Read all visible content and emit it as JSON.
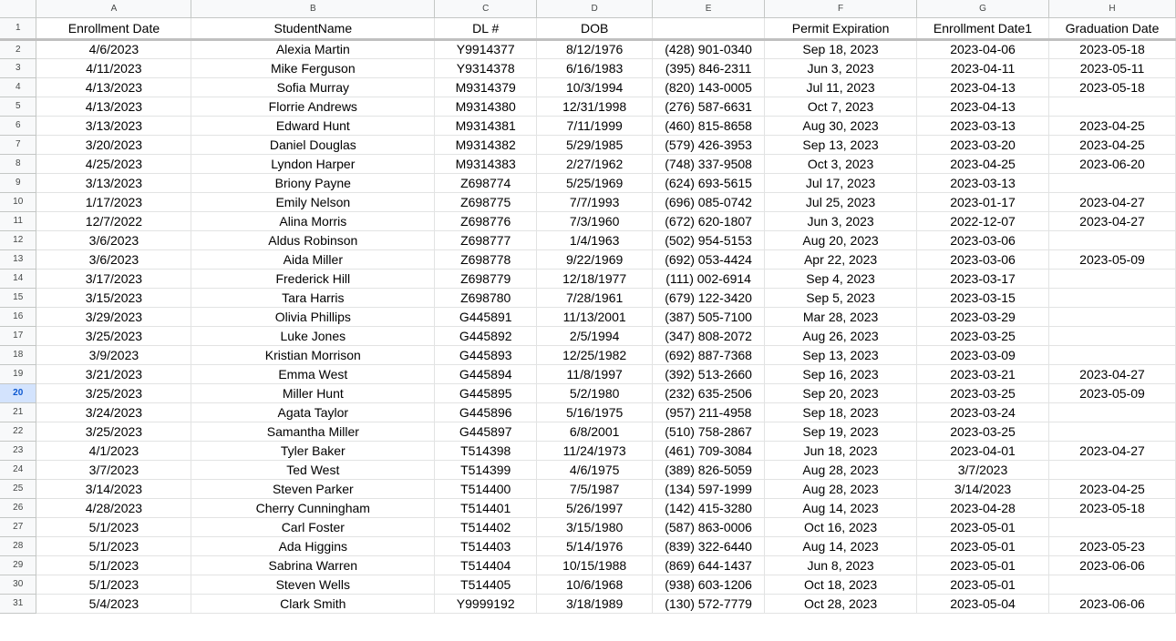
{
  "columns": [
    {
      "letter": "A",
      "header": "Enrollment Date"
    },
    {
      "letter": "B",
      "header": "StudentName"
    },
    {
      "letter": "C",
      "header": "DL #"
    },
    {
      "letter": "D",
      "header": "DOB"
    },
    {
      "letter": "E",
      "header": ""
    },
    {
      "letter": "F",
      "header": "Permit Expiration"
    },
    {
      "letter": "G",
      "header": "Enrollment Date1"
    },
    {
      "letter": "H",
      "header": "Graduation Date"
    }
  ],
  "header_row_number": "1",
  "selected_row_number": "20",
  "rows": [
    {
      "num": "2",
      "cells": [
        "4/6/2023",
        "Alexia Martin",
        "Y9914377",
        "8/12/1976",
        "(428) 901-0340",
        "Sep 18, 2023",
        "2023-04-06",
        "2023-05-18"
      ]
    },
    {
      "num": "3",
      "cells": [
        "4/11/2023",
        "Mike Ferguson",
        "Y9314378",
        "6/16/1983",
        "(395) 846-2311",
        "Jun 3, 2023",
        "2023-04-11",
        "2023-05-11"
      ]
    },
    {
      "num": "4",
      "cells": [
        "4/13/2023",
        "Sofia Murray",
        "M9314379",
        "10/3/1994",
        "(820) 143-0005",
        "Jul 11, 2023",
        "2023-04-13",
        "2023-05-18"
      ]
    },
    {
      "num": "5",
      "cells": [
        "4/13/2023",
        "Florrie Andrews",
        "M9314380",
        "12/31/1998",
        "(276) 587-6631",
        "Oct 7, 2023",
        "2023-04-13",
        ""
      ]
    },
    {
      "num": "6",
      "cells": [
        "3/13/2023",
        "Edward Hunt",
        "M9314381",
        "7/11/1999",
        "(460) 815-8658",
        "Aug 30, 2023",
        "2023-03-13",
        "2023-04-25"
      ]
    },
    {
      "num": "7",
      "cells": [
        "3/20/2023",
        "Daniel Douglas",
        "M9314382",
        "5/29/1985",
        "(579) 426-3953",
        "Sep 13, 2023",
        "2023-03-20",
        "2023-04-25"
      ]
    },
    {
      "num": "8",
      "cells": [
        "4/25/2023",
        "Lyndon Harper",
        "M9314383",
        "2/27/1962",
        "(748) 337-9508",
        "Oct 3, 2023",
        "2023-04-25",
        "2023-06-20"
      ]
    },
    {
      "num": "9",
      "cells": [
        "3/13/2023",
        "Briony Payne",
        "Z698774",
        "5/25/1969",
        "(624) 693-5615",
        "Jul 17, 2023",
        "2023-03-13",
        ""
      ]
    },
    {
      "num": "10",
      "cells": [
        "1/17/2023",
        "Emily Nelson",
        "Z698775",
        "7/7/1993",
        "(696) 085-0742",
        "Jul 25, 2023",
        "2023-01-17",
        "2023-04-27"
      ]
    },
    {
      "num": "11",
      "cells": [
        "12/7/2022",
        "Alina Morris",
        "Z698776",
        "7/3/1960",
        "(672) 620-1807",
        "Jun 3, 2023",
        "2022-12-07",
        "2023-04-27"
      ]
    },
    {
      "num": "12",
      "cells": [
        "3/6/2023",
        "Aldus Robinson",
        "Z698777",
        "1/4/1963",
        "(502) 954-5153",
        "Aug 20, 2023",
        "2023-03-06",
        ""
      ]
    },
    {
      "num": "13",
      "cells": [
        "3/6/2023",
        "Aida Miller",
        "Z698778",
        "9/22/1969",
        "(692) 053-4424",
        "Apr 22, 2023",
        "2023-03-06",
        "2023-05-09"
      ]
    },
    {
      "num": "14",
      "cells": [
        "3/17/2023",
        "Frederick Hill",
        "Z698779",
        "12/18/1977",
        "(111) 002-6914",
        "Sep 4, 2023",
        "2023-03-17",
        ""
      ]
    },
    {
      "num": "15",
      "cells": [
        "3/15/2023",
        "Tara Harris",
        "Z698780",
        "7/28/1961",
        "(679) 122-3420",
        "Sep 5, 2023",
        "2023-03-15",
        ""
      ]
    },
    {
      "num": "16",
      "cells": [
        "3/29/2023",
        "Olivia Phillips",
        "G445891",
        "11/13/2001",
        "(387) 505-7100",
        "Mar 28, 2023",
        "2023-03-29",
        ""
      ]
    },
    {
      "num": "17",
      "cells": [
        "3/25/2023",
        "Luke Jones",
        "G445892",
        "2/5/1994",
        "(347) 808-2072",
        "Aug 26, 2023",
        "2023-03-25",
        ""
      ]
    },
    {
      "num": "18",
      "cells": [
        "3/9/2023",
        "Kristian Morrison",
        "G445893",
        "12/25/1982",
        "(692) 887-7368",
        "Sep 13, 2023",
        "2023-03-09",
        ""
      ]
    },
    {
      "num": "19",
      "cells": [
        "3/21/2023",
        "Emma West",
        "G445894",
        "11/8/1997",
        "(392) 513-2660",
        "Sep 16, 2023",
        "2023-03-21",
        "2023-04-27"
      ]
    },
    {
      "num": "20",
      "cells": [
        "3/25/2023",
        "Miller Hunt",
        "G445895",
        "5/2/1980",
        "(232) 635-2506",
        "Sep 20, 2023",
        "2023-03-25",
        "2023-05-09"
      ]
    },
    {
      "num": "21",
      "cells": [
        "3/24/2023",
        "Agata Taylor",
        "G445896",
        "5/16/1975",
        "(957) 211-4958",
        "Sep 18, 2023",
        "2023-03-24",
        ""
      ]
    },
    {
      "num": "22",
      "cells": [
        "3/25/2023",
        "Samantha Miller",
        "G445897",
        "6/8/2001",
        "(510) 758-2867",
        "Sep 19, 2023",
        "2023-03-25",
        ""
      ]
    },
    {
      "num": "23",
      "cells": [
        "4/1/2023",
        "Tyler Baker",
        "T514398",
        "11/24/1973",
        "(461) 709-3084",
        "Jun 18, 2023",
        "2023-04-01",
        "2023-04-27"
      ]
    },
    {
      "num": "24",
      "cells": [
        "3/7/2023",
        "Ted West",
        "T514399",
        "4/6/1975",
        "(389) 826-5059",
        "Aug 28, 2023",
        "3/7/2023",
        ""
      ]
    },
    {
      "num": "25",
      "cells": [
        "3/14/2023",
        "Steven Parker",
        "T514400",
        "7/5/1987",
        "(134) 597-1999",
        "Aug 28, 2023",
        "3/14/2023",
        "2023-04-25"
      ]
    },
    {
      "num": "26",
      "cells": [
        "4/28/2023",
        "Cherry Cunningham",
        "T514401",
        "5/26/1997",
        "(142) 415-3280",
        "Aug 14, 2023",
        "2023-04-28",
        "2023-05-18"
      ]
    },
    {
      "num": "27",
      "cells": [
        "5/1/2023",
        "Carl Foster",
        "T514402",
        "3/15/1980",
        "(587) 863-0006",
        "Oct 16, 2023",
        "2023-05-01",
        ""
      ]
    },
    {
      "num": "28",
      "cells": [
        "5/1/2023",
        "Ada Higgins",
        "T514403",
        "5/14/1976",
        "(839) 322-6440",
        "Aug 14, 2023",
        "2023-05-01",
        "2023-05-23"
      ]
    },
    {
      "num": "29",
      "cells": [
        "5/1/2023",
        "Sabrina Warren",
        "T514404",
        "10/15/1988",
        "(869) 644-1437",
        "Jun 8, 2023",
        "2023-05-01",
        "2023-06-06"
      ]
    },
    {
      "num": "30",
      "cells": [
        "5/1/2023",
        "Steven Wells",
        "T514405",
        "10/6/1968",
        "(938) 603-1206",
        "Oct 18, 2023",
        "2023-05-01",
        ""
      ]
    },
    {
      "num": "31",
      "cells": [
        "5/4/2023",
        "Clark Smith",
        "Y9999192",
        "3/18/1989",
        "(130) 572-7779",
        "Oct 28, 2023",
        "2023-05-04",
        "2023-06-06"
      ]
    }
  ]
}
